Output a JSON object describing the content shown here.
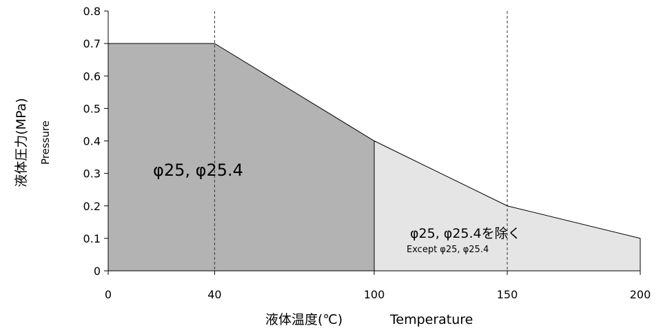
{
  "chart_data": {
    "type": "area",
    "xlabel_ja": "液体温度(℃)",
    "xlabel_en": "Temperature",
    "ylabel_ja": "液体圧力(MPa)",
    "ylabel_en": "Pressure",
    "x_ticks": [
      0,
      40,
      100,
      150,
      200
    ],
    "y_ticks": [
      0,
      0.1,
      0.2,
      0.3,
      0.4,
      0.5,
      0.6,
      0.7,
      0.8
    ],
    "y_tick_labels": [
      "0",
      "0.1",
      "0.2",
      "0.3",
      "0.4",
      "0.5",
      "0.6",
      "0.7",
      "0.8"
    ],
    "xlim": [
      0,
      200
    ],
    "ylim": [
      0,
      0.8
    ],
    "reference_lines_x": [
      40,
      150
    ],
    "series": [
      {
        "name": "φ25, φ25.4",
        "x": [
          0,
          40,
          100
        ],
        "y": [
          0.7,
          0.7,
          0.4
        ],
        "color": "#b3b3b3"
      },
      {
        "name": "φ25, φ25.4を除く",
        "x": [
          0,
          40,
          100,
          150,
          200
        ],
        "y": [
          0.7,
          0.7,
          0.4,
          0.2,
          0.1
        ],
        "color": "#e5e5e5"
      }
    ],
    "annotations": {
      "region1": "φ25, φ25.4",
      "region2_ja": "φ25, φ25.4を除く",
      "region2_en": "Except φ25, φ25.4"
    }
  }
}
